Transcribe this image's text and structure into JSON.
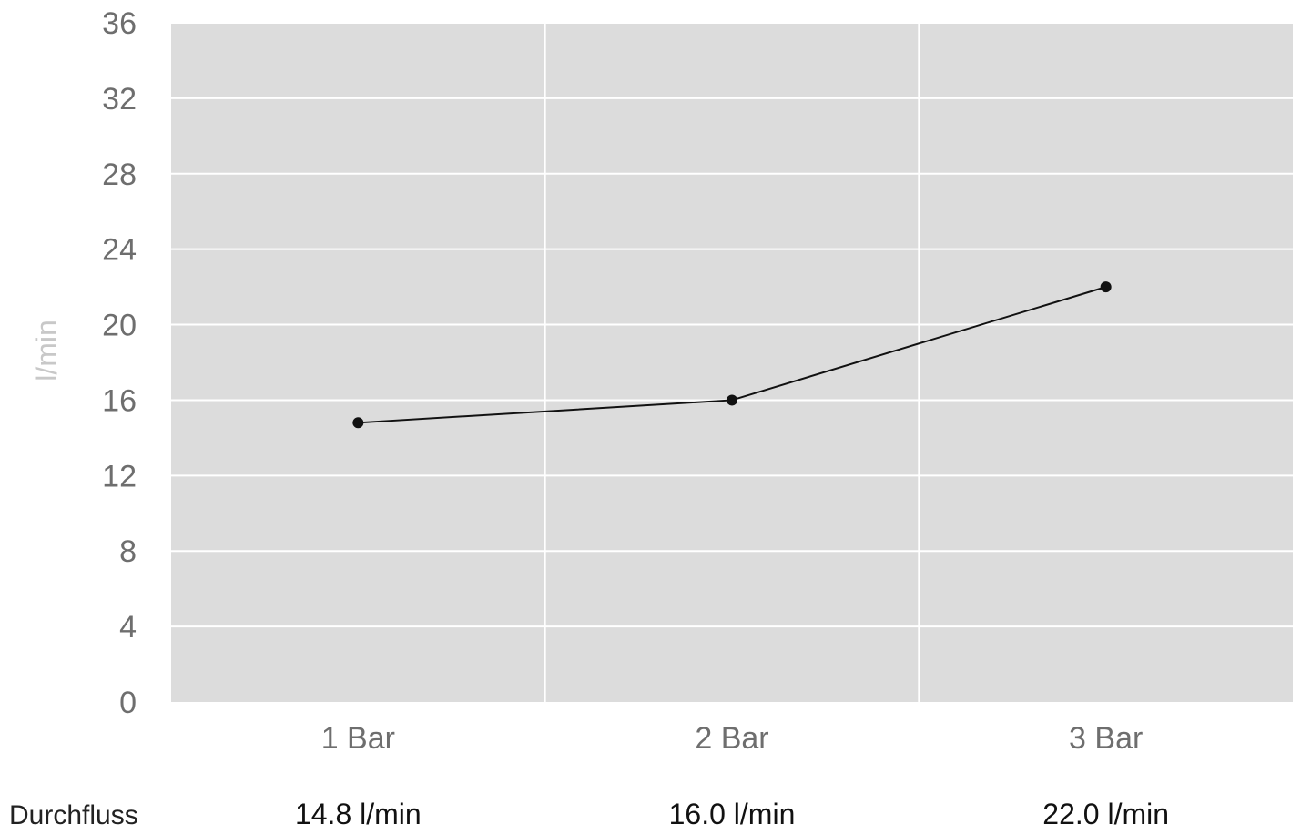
{
  "chart_data": {
    "type": "line",
    "categories": [
      "1 Bar",
      "2 Bar",
      "3 Bar"
    ],
    "series": [
      {
        "values": [
          14.8,
          16.0,
          22.0
        ]
      }
    ],
    "title": "",
    "xlabel": "",
    "ylabel": "l/min",
    "ylim": [
      0,
      36
    ],
    "yticks": [
      0,
      4,
      8,
      12,
      16,
      20,
      24,
      28,
      32,
      36
    ],
    "grid": true,
    "colors": {
      "plot_background": "#dcdcdc",
      "gridline": "#ffffff",
      "line": "#111111"
    },
    "table_row": {
      "label": "Durchfluss",
      "values": [
        "14.8 l/min",
        "16.0 l/min",
        "22.0 l/min"
      ]
    }
  }
}
